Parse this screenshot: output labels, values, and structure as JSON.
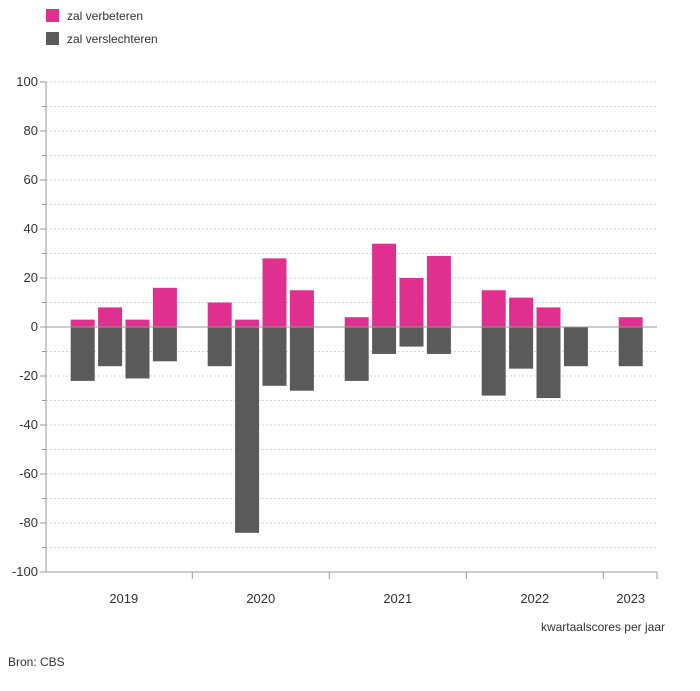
{
  "colors": {
    "improve": "#e0308f",
    "worsen": "#5a5a5a",
    "grid": "#d6d6d6",
    "axis": "#999999",
    "text": "#333333"
  },
  "source": "Bron: CBS",
  "chart_data": {
    "type": "bar",
    "ylim": [
      -100,
      100
    ],
    "yticks": [
      100,
      80,
      60,
      40,
      20,
      0,
      -20,
      -40,
      -60,
      -80,
      -100
    ],
    "grid": true,
    "legend_position": "top-left",
    "xlabel": "kwartaalscores per jaar",
    "years": [
      "2019",
      "2020",
      "2021",
      "2022",
      "2023"
    ],
    "quarters_per_year": [
      4,
      4,
      4,
      4,
      1
    ],
    "series": [
      {
        "name": "zal verbeteren",
        "color": "#e0308f",
        "values": [
          3,
          8,
          3,
          16,
          10,
          3,
          28,
          15,
          4,
          34,
          20,
          29,
          15,
          12,
          8,
          0,
          4
        ]
      },
      {
        "name": "zal verslechteren",
        "color": "#5a5a5a",
        "values": [
          -22,
          -16,
          -21,
          -14,
          -16,
          -84,
          -24,
          -26,
          -22,
          -11,
          -8,
          -11,
          -28,
          -17,
          -29,
          -16,
          -16
        ]
      }
    ]
  }
}
